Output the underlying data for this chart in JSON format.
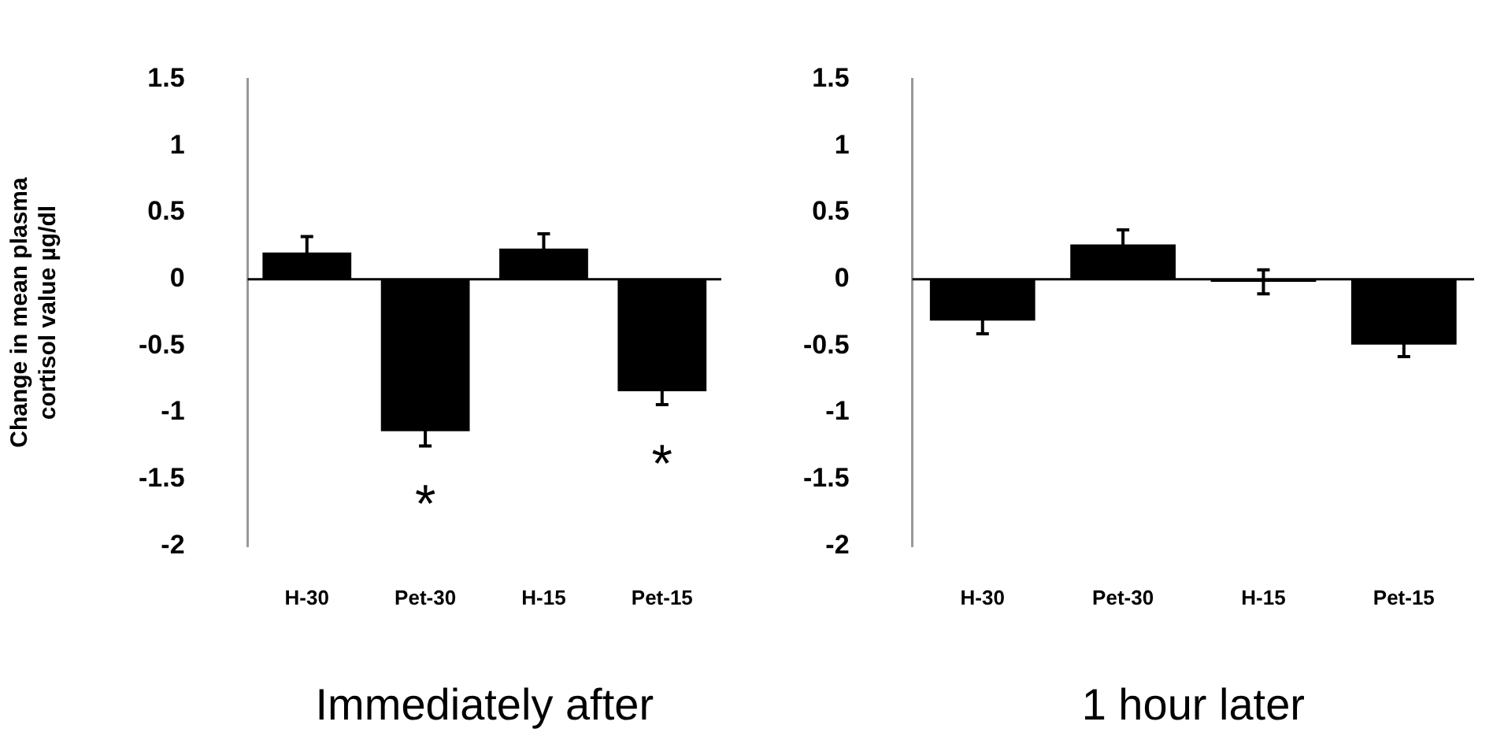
{
  "chart_data": [
    {
      "type": "bar",
      "xlabel": "Immediately after",
      "ylabel": "Change in mean plasma cortisol value µg/dl",
      "categories": [
        "H-30",
        "Pet-30",
        "H-15",
        "Pet-15"
      ],
      "values": [
        0.2,
        -1.14,
        0.23,
        -0.84
      ],
      "errors": [
        0.12,
        0.11,
        0.11,
        0.1
      ],
      "color": "#000000",
      "ylim": [
        -2,
        1.5
      ],
      "yticks": [
        -2,
        -1.5,
        -1,
        -0.5,
        0,
        0.5,
        1,
        1.5
      ],
      "annotations": [
        {
          "text": "*",
          "x": "Pet-30",
          "y": -1.14
        },
        {
          "text": "*",
          "x": "Pet-15",
          "y": -0.84
        }
      ]
    },
    {
      "type": "bar",
      "xlabel": "1 hour later",
      "categories": [
        "H-30",
        "Pet-30",
        "H-15",
        "Pet-15"
      ],
      "values": [
        -0.31,
        0.26,
        -0.02,
        -0.49
      ],
      "errors": [
        0.1,
        0.11,
        0.09,
        0.09
      ],
      "color": "#000000",
      "ylim": [
        -2,
        1.5
      ],
      "yticks": [
        -2,
        -1.5,
        -1,
        -0.5,
        0,
        0.5,
        1,
        1.5
      ]
    }
  ]
}
